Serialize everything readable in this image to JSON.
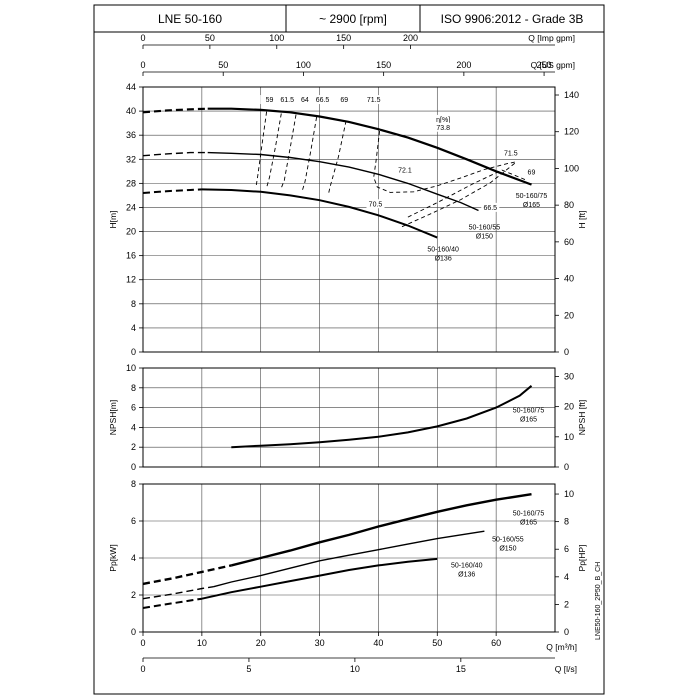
{
  "header": {
    "model": "LNE 50-160",
    "speed": "~ 2900 [rpm]",
    "standard": "ISO 9906:2012 - Grade 3B"
  },
  "side_code": "LNE50-160_2P50_B_CH",
  "chart_data": [
    {
      "type": "line",
      "panel": "head",
      "x_unit": "Q [m³/h]",
      "xlim": [
        0,
        70
      ],
      "ylabel": "H[m]",
      "ylim": [
        0,
        44
      ],
      "yticks": [
        0,
        4,
        8,
        12,
        16,
        20,
        24,
        28,
        32,
        36,
        40,
        44
      ],
      "ylabel_right": "H [ft]",
      "yticks_right": [
        0,
        20,
        40,
        60,
        80,
        100,
        120,
        140
      ],
      "top_axes": [
        {
          "label": "Q [Imp gpm]",
          "ticks": [
            0,
            50,
            100,
            150,
            200
          ]
        },
        {
          "label": "Q [US gpm]",
          "ticks": [
            0,
            50,
            100,
            150,
            200,
            250
          ]
        }
      ],
      "series": [
        {
          "name": "50-160/75 Ø165",
          "label_lines": [
            "50-160/75",
            "Ø165"
          ],
          "dashed": [
            [
              0,
              39.8
            ],
            [
              4,
              40.1
            ],
            [
              8,
              40.3
            ],
            [
              11,
              40.4
            ]
          ],
          "solid": [
            [
              11,
              40.4
            ],
            [
              15,
              40.4
            ],
            [
              20,
              40.2
            ],
            [
              25,
              39.8
            ],
            [
              30,
              39.1
            ],
            [
              35,
              38.2
            ],
            [
              40,
              37.0
            ],
            [
              45,
              35.6
            ],
            [
              50,
              33.9
            ],
            [
              55,
              32.0
            ],
            [
              60,
              30.0
            ],
            [
              66,
              27.8
            ]
          ]
        },
        {
          "name": "50-160/55 Ø150",
          "label_lines": [
            "50-160/55",
            "Ø150"
          ],
          "dashed": [
            [
              0,
              32.6
            ],
            [
              4,
              32.9
            ],
            [
              8,
              33.1
            ],
            [
              11,
              33.1
            ]
          ],
          "solid": [
            [
              11,
              33.1
            ],
            [
              15,
              33.0
            ],
            [
              20,
              32.8
            ],
            [
              25,
              32.3
            ],
            [
              30,
              31.6
            ],
            [
              35,
              30.7
            ],
            [
              40,
              29.5
            ],
            [
              45,
              28.0
            ],
            [
              50,
              26.2
            ],
            [
              54,
              24.8
            ],
            [
              57,
              23.5
            ]
          ]
        },
        {
          "name": "50-160/40 Ø136",
          "label_lines": [
            "50-160/40",
            "Ø136"
          ],
          "dashed": [
            [
              0,
              26.4
            ],
            [
              4,
              26.7
            ],
            [
              8,
              26.9
            ],
            [
              10,
              27.0
            ]
          ],
          "solid": [
            [
              10,
              27.0
            ],
            [
              15,
              26.9
            ],
            [
              20,
              26.6
            ],
            [
              25,
              26.0
            ],
            [
              30,
              25.2
            ],
            [
              35,
              24.1
            ],
            [
              40,
              22.7
            ],
            [
              45,
              21.0
            ],
            [
              50,
              19.0
            ]
          ]
        }
      ],
      "efficiency_lines": [
        {
          "label": "59",
          "points": [
            [
              21,
              39.9
            ],
            [
              20.2,
              34.3
            ],
            [
              19.5,
              29.3
            ],
            [
              19.2,
              27.4
            ]
          ]
        },
        {
          "label": "61.5",
          "points": [
            [
              23.5,
              39.6
            ],
            [
              22.5,
              34.0
            ],
            [
              21.5,
              29.0
            ],
            [
              21,
              27.3
            ]
          ]
        },
        {
          "label": "64",
          "points": [
            [
              26,
              39.4
            ],
            [
              25,
              33.8
            ],
            [
              24,
              28.5
            ],
            [
              23.4,
              27.0
            ]
          ]
        },
        {
          "label": "66.5",
          "points": [
            [
              29.5,
              39.0
            ],
            [
              28.5,
              33.3
            ],
            [
              27.5,
              28.2
            ],
            [
              27,
              26.6
            ]
          ]
        },
        {
          "label": "69",
          "points": [
            [
              34.5,
              38.4
            ],
            [
              33.2,
              32.4
            ],
            [
              31.8,
              27.5
            ],
            [
              31.5,
              26.2
            ]
          ]
        },
        {
          "label": "71.5",
          "points": [
            [
              40.2,
              36.7
            ],
            [
              39.6,
              31.8
            ],
            [
              39.2,
              29.0
            ],
            [
              39.8,
              27.4
            ],
            [
              42,
              26.5
            ],
            [
              46,
              26.6
            ],
            [
              50,
              27.6
            ],
            [
              54,
              28.9
            ],
            [
              58,
              30.3
            ],
            [
              62,
              31.3
            ],
            [
              63.5,
              31.6
            ]
          ]
        },
        {
          "label": "72.1",
          "points": [
            [
              47,
              28.5
            ]
          ]
        },
        {
          "label": "66.5",
          "points": [
            [
              45,
              22.4
            ],
            [
              50,
              24.8
            ],
            [
              56,
              27.9
            ],
            [
              61,
              30.2
            ],
            [
              65,
              28.6
            ]
          ]
        },
        {
          "label": "69",
          "points": [
            [
              44,
              20.8
            ],
            [
              49,
              23.0
            ],
            [
              54,
              25.3
            ],
            [
              59,
              28.1
            ],
            [
              63.5,
              31.6
            ]
          ]
        }
      ],
      "efficiency_annotations": [
        {
          "text": "η[%]",
          "at": [
            51,
            38.2
          ]
        },
        {
          "text": "73.8",
          "at": [
            51,
            36.9
          ]
        },
        {
          "text": "72.1",
          "at": [
            44.5,
            29.8
          ]
        },
        {
          "text": "70.5",
          "at": [
            39.5,
            24.2
          ]
        },
        {
          "text": "66.5",
          "at": [
            59,
            23.6
          ]
        },
        {
          "text": "71.5",
          "at": [
            62.5,
            32.6
          ]
        },
        {
          "text": "69",
          "at": [
            66,
            29.5
          ]
        }
      ],
      "eff_top_labels": [
        "59",
        "61.5",
        "64",
        "66.5",
        "69",
        "71.5"
      ]
    },
    {
      "type": "line",
      "panel": "npsh",
      "x_unit": "Q [m³/h]",
      "xlim": [
        0,
        70
      ],
      "ylabel": "NPSH[m]",
      "ylim": [
        0,
        10
      ],
      "yticks": [
        0,
        2,
        4,
        6,
        8,
        10
      ],
      "ylabel_right": "NPSH [ft]",
      "yticks_right": [
        0,
        10,
        20,
        30
      ],
      "series": [
        {
          "name": "50-160/75 Ø165",
          "label_lines": [
            "50-160/75",
            "Ø165"
          ],
          "solid": [
            [
              15,
              2.0
            ],
            [
              20,
              2.15
            ],
            [
              25,
              2.3
            ],
            [
              30,
              2.5
            ],
            [
              35,
              2.75
            ],
            [
              40,
              3.05
            ],
            [
              45,
              3.5
            ],
            [
              50,
              4.1
            ],
            [
              55,
              4.9
            ],
            [
              60,
              6.0
            ],
            [
              64,
              7.2
            ],
            [
              66,
              8.2
            ]
          ]
        }
      ]
    },
    {
      "type": "line",
      "panel": "power",
      "x_unit": "Q [m³/h]",
      "xlim": [
        0,
        70
      ],
      "ylabel": "Pp[kW]",
      "ylim": [
        0,
        8
      ],
      "yticks": [
        0,
        2,
        4,
        6,
        8
      ],
      "ylabel_right": "Pp[HP]",
      "yticks_right": [
        0,
        2,
        4,
        6,
        8,
        10
      ],
      "xlabel": "Q [m³/h]",
      "xticks": [
        0,
        10,
        20,
        30,
        40,
        50,
        60
      ],
      "xlabel2": "Q [l/s]",
      "xticks2": [
        0,
        5,
        10,
        15
      ],
      "series": [
        {
          "name": "50-160/75 Ø165",
          "label_lines": [
            "50-160/75",
            "Ø165"
          ],
          "dashed": [
            [
              0,
              2.6
            ],
            [
              5,
              2.9
            ],
            [
              10,
              3.25
            ],
            [
              15,
              3.6
            ]
          ],
          "solid": [
            [
              15,
              3.6
            ],
            [
              20,
              4.0
            ],
            [
              25,
              4.4
            ],
            [
              30,
              4.85
            ],
            [
              35,
              5.25
            ],
            [
              40,
              5.7
            ],
            [
              45,
              6.1
            ],
            [
              50,
              6.5
            ],
            [
              55,
              6.85
            ],
            [
              60,
              7.15
            ],
            [
              66,
              7.45
            ]
          ]
        },
        {
          "name": "50-160/55 Ø150",
          "label_lines": [
            "50-160/55",
            "Ø150"
          ],
          "dashed": [
            [
              0,
              1.8
            ],
            [
              5,
              2.05
            ],
            [
              10,
              2.35
            ],
            [
              12,
              2.45
            ]
          ],
          "solid": [
            [
              12,
              2.45
            ],
            [
              15,
              2.7
            ],
            [
              20,
              3.05
            ],
            [
              25,
              3.45
            ],
            [
              30,
              3.85
            ],
            [
              35,
              4.15
            ],
            [
              40,
              4.45
            ],
            [
              45,
              4.75
            ],
            [
              50,
              5.05
            ],
            [
              58,
              5.45
            ]
          ]
        },
        {
          "name": "50-160/40 Ø136",
          "label_lines": [
            "50-160/40",
            "Ø136"
          ],
          "dashed": [
            [
              0,
              1.3
            ],
            [
              5,
              1.55
            ],
            [
              10,
              1.8
            ]
          ],
          "solid": [
            [
              10,
              1.8
            ],
            [
              15,
              2.15
            ],
            [
              20,
              2.45
            ],
            [
              25,
              2.75
            ],
            [
              30,
              3.05
            ],
            [
              35,
              3.35
            ],
            [
              40,
              3.6
            ],
            [
              45,
              3.8
            ],
            [
              50,
              3.95
            ]
          ]
        }
      ]
    }
  ]
}
